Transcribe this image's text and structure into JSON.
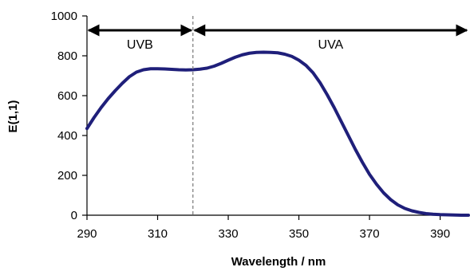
{
  "chart_data": {
    "type": "line",
    "title": "",
    "xlabel": "Wavelength / nm",
    "ylabel": "E(1,1)",
    "xlim": [
      290,
      398
    ],
    "ylim": [
      0,
      1000
    ],
    "x_ticks": [
      "290",
      "310",
      "330",
      "350",
      "370",
      "390"
    ],
    "y_ticks": [
      "0",
      "200",
      "400",
      "600",
      "800",
      "1000"
    ],
    "grid": false,
    "legend": "none",
    "line_color": "#1f1f7a",
    "series": [
      {
        "x": [
          290,
          292,
          294,
          296,
          298,
          300,
          302,
          304,
          306,
          308,
          310,
          312,
          314,
          316,
          318,
          320,
          322,
          324,
          326,
          328,
          330,
          332,
          334,
          336,
          338,
          340,
          342,
          344,
          346,
          348,
          350,
          352,
          354,
          356,
          358,
          360,
          362,
          364,
          366,
          368,
          370,
          372,
          374,
          376,
          378,
          380,
          382,
          384,
          386,
          388,
          390,
          392,
          394,
          396,
          398
        ],
        "values": [
          435,
          490,
          540,
          585,
          625,
          662,
          695,
          718,
          730,
          735,
          735,
          734,
          732,
          730,
          729,
          730,
          733,
          738,
          748,
          762,
          778,
          793,
          805,
          813,
          817,
          818,
          817,
          815,
          808,
          797,
          778,
          752,
          715,
          665,
          605,
          540,
          470,
          400,
          330,
          265,
          205,
          155,
          112,
          78,
          52,
          34,
          22,
          14,
          8,
          5,
          3,
          2,
          1,
          0,
          0
        ]
      }
    ],
    "divider": {
      "x": 320
    },
    "regions": [
      {
        "label": "UVB",
        "x_start": 290,
        "x_end": 320,
        "y": 900
      },
      {
        "label": "UVA",
        "x_start": 320,
        "x_end": 398,
        "y": 900
      }
    ]
  }
}
